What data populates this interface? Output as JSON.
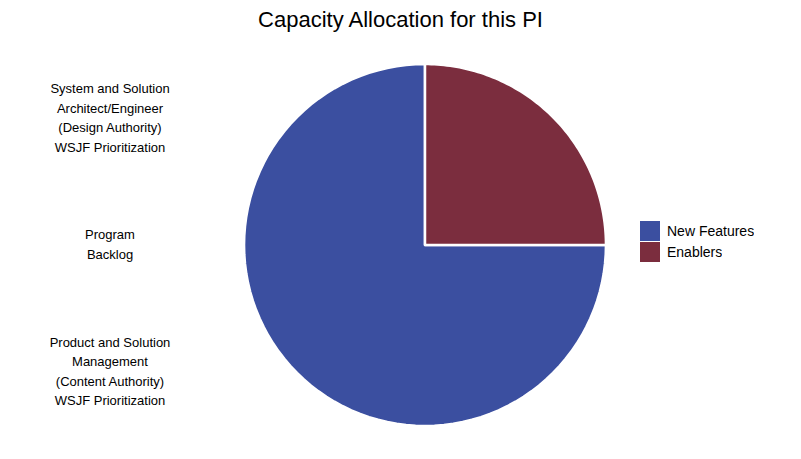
{
  "chart_data": {
    "type": "pie",
    "title": "Capacity Allocation for this PI",
    "categories": [
      "New Features",
      "Enablers"
    ],
    "values": [
      75,
      25
    ],
    "colors": [
      "#3B4FA0",
      "#7B2D3E"
    ],
    "legend": "right",
    "annotations": [
      "System and Solution\nArchitect/Engineer\n(Design Authority)\nWSJF Prioritization",
      "Program\nBacklog",
      "Product and Solution\nManagement\n(Content Authority)\nWSJF Prioritization"
    ]
  }
}
